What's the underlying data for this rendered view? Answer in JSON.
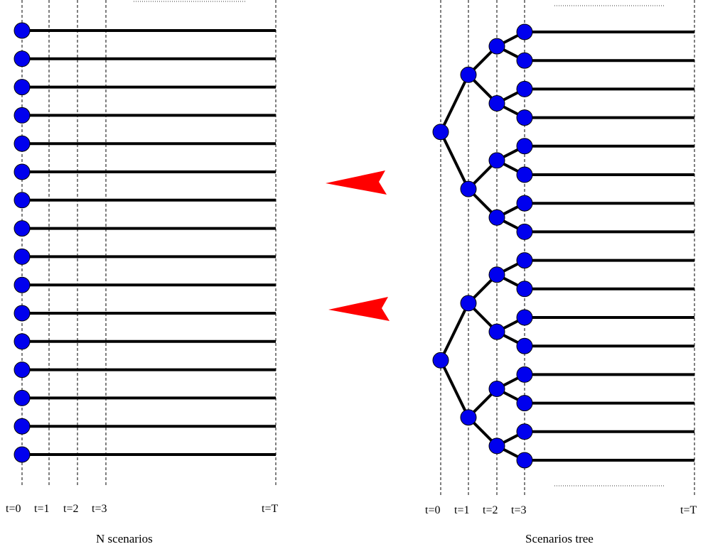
{
  "left_panel": {
    "caption": "N scenarios",
    "time_labels": [
      "t=0",
      "t=1",
      "t=2",
      "t=3",
      "t=T"
    ],
    "scenario_count": 16
  },
  "right_panel": {
    "caption": "Scenarios tree",
    "time_labels": [
      "t=0",
      "t=1",
      "t=2",
      "t=3",
      "t=T"
    ],
    "tree": {
      "roots": 2,
      "branching_per_node": 2,
      "branch_levels": 3,
      "leaf_count": 16
    }
  },
  "colors": {
    "node_fill": "#0000ee",
    "line": "#000000",
    "arrow": "#ff0000",
    "dashed": "#000000"
  }
}
